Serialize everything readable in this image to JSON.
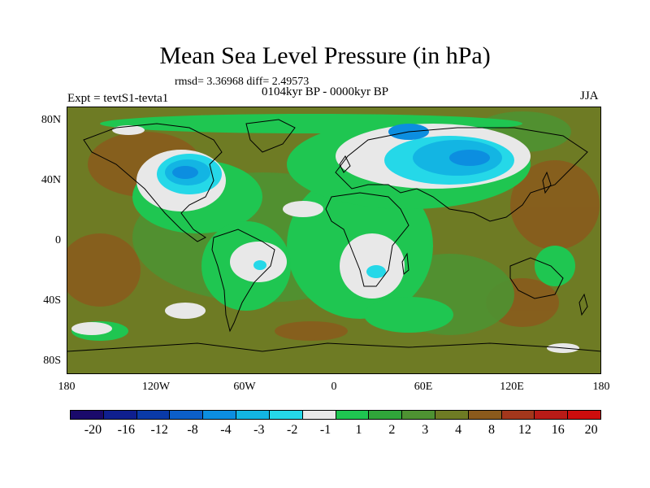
{
  "header": {
    "title": "Mean Sea Level Pressure (in hPa)",
    "stats": "rmsd= 3.36968 diff= 2.49573",
    "experiment": "Expt = tevtS1-tevta1",
    "period": "0104kyr BP - 0000kyr BP",
    "season": "JJA"
  },
  "y_axis_ticks": [
    "80N",
    "40N",
    "0",
    "40S",
    "80S"
  ],
  "x_axis_ticks": [
    "180",
    "120W",
    "60W",
    "0",
    "60E",
    "120E",
    "180"
  ],
  "colorbar": {
    "colors": [
      "#1a0a6b",
      "#0f1f8f",
      "#0a3aa8",
      "#0c5fc9",
      "#0c8ee0",
      "#13b5e3",
      "#25d8e8",
      "#e8e8e8",
      "#1fc651",
      "#30a53a",
      "#4e9232",
      "#6e7b24",
      "#8b5a1c",
      "#a3371c",
      "#b91b17",
      "#cd0d0d"
    ],
    "labels": [
      "-20",
      "-16",
      "-12",
      "-8",
      "-4",
      "-3",
      "-2",
      "-1",
      "1",
      "2",
      "3",
      "4",
      "8",
      "12",
      "16",
      "20"
    ]
  }
}
